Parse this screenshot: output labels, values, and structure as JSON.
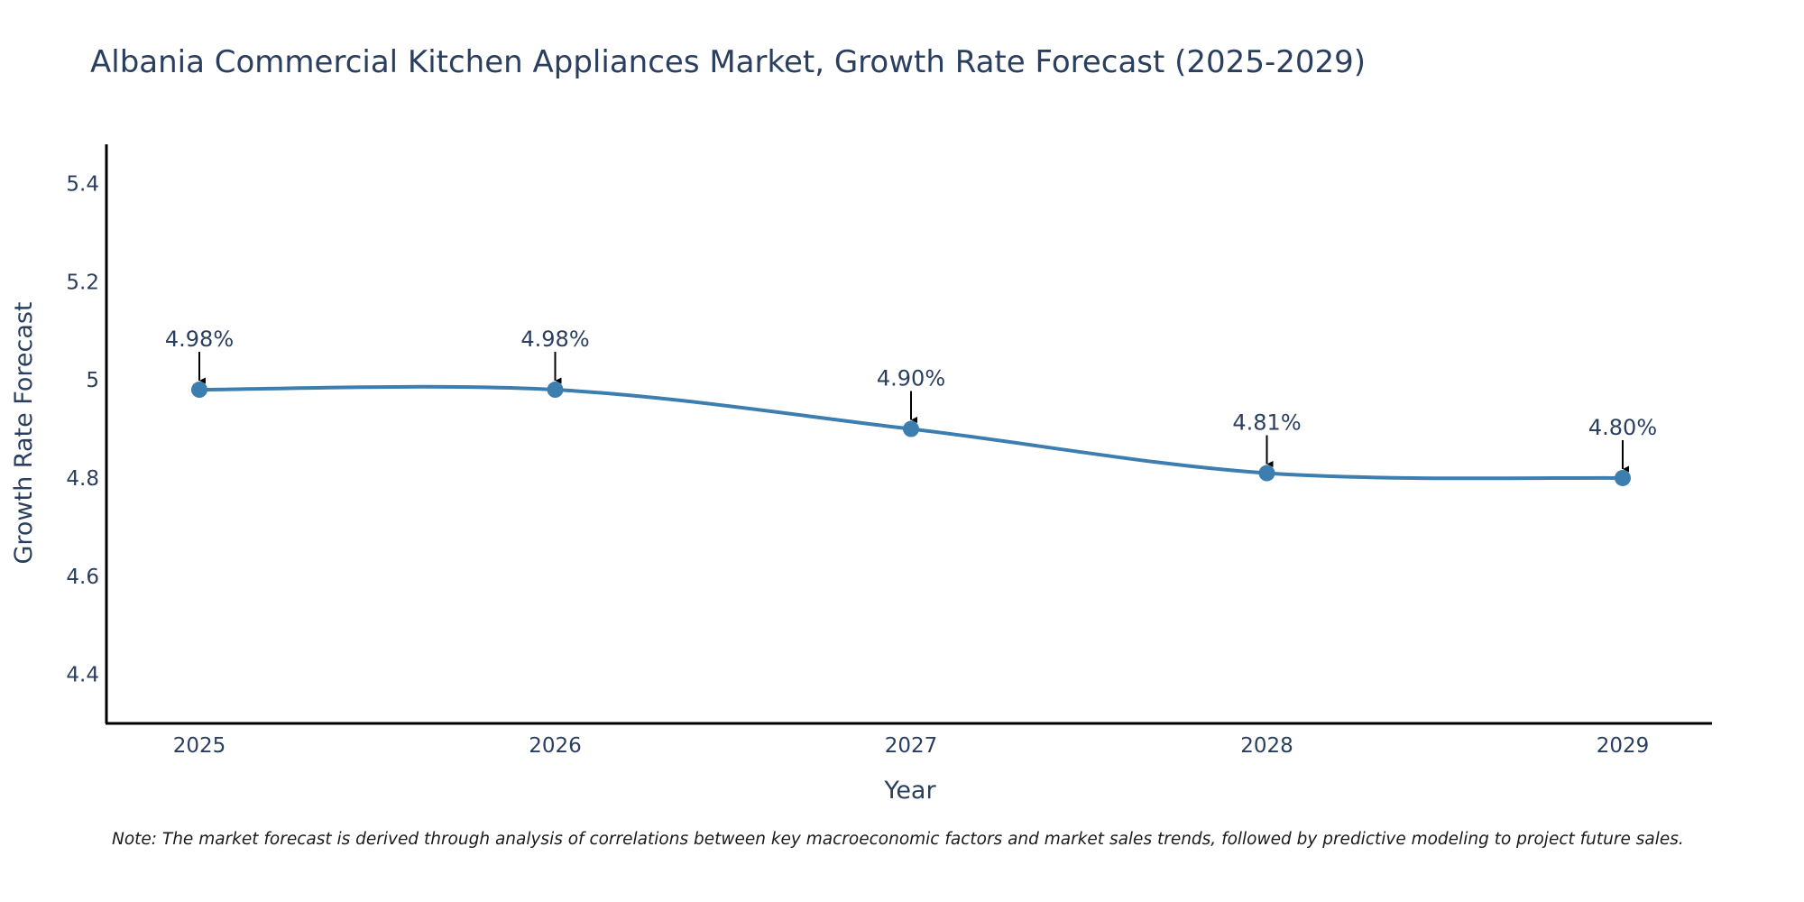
{
  "chart_data": {
    "type": "line",
    "title": "Albania Commercial Kitchen Appliances Market, Growth Rate Forecast (2025-2029)",
    "xlabel": "Year",
    "ylabel": "Growth Rate Forecast",
    "categories": [
      "2025",
      "2026",
      "2027",
      "2028",
      "2029"
    ],
    "values": [
      4.98,
      4.98,
      4.9,
      4.81,
      4.8
    ],
    "data_labels": [
      "4.98%",
      "4.98%",
      "4.90%",
      "4.81%",
      "4.80%"
    ],
    "ylim": [
      4.3,
      5.48
    ],
    "y_ticks": [
      4.4,
      4.6,
      4.8,
      5,
      5.2,
      5.4
    ],
    "y_tick_labels": [
      "4.4",
      "4.6",
      "4.8",
      "5",
      "5.2",
      "5.4"
    ],
    "grid": false,
    "line_color": "#3d7eb0",
    "text_color": "#2a3f5f"
  },
  "note": "Note: The market forecast is derived through analysis of correlations between key macroeconomic factors and market sales trends, followed by predictive modeling to project future sales."
}
